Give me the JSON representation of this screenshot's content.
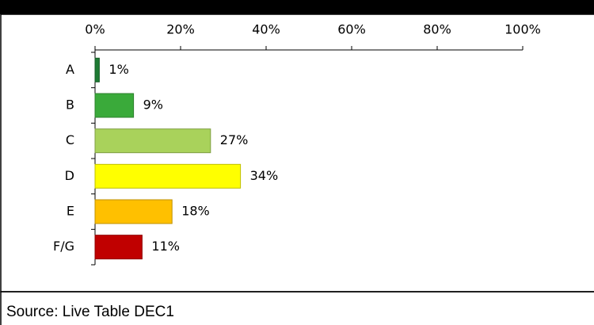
{
  "chart_data": {
    "type": "bar",
    "orientation": "horizontal",
    "categories": [
      "A",
      "B",
      "C",
      "D",
      "E",
      "F/G"
    ],
    "values": [
      1,
      9,
      27,
      34,
      18,
      11
    ],
    "value_labels": [
      "1%",
      "9%",
      "27%",
      "34%",
      "18%",
      "11%"
    ],
    "colors": [
      "#1e7b34",
      "#3aaa3a",
      "#a9d25b",
      "#ffff00",
      "#ffc000",
      "#c00000"
    ],
    "xlim": [
      0,
      100
    ],
    "xticks": [
      {
        "value": 0,
        "label": "0%"
      },
      {
        "value": 20,
        "label": "20%"
      },
      {
        "value": 40,
        "label": "40%"
      },
      {
        "value": 60,
        "label": "60%"
      },
      {
        "value": 80,
        "label": "80%"
      },
      {
        "value": 100,
        "label": "100%"
      }
    ],
    "source": "Source: Live Table DEC1"
  }
}
